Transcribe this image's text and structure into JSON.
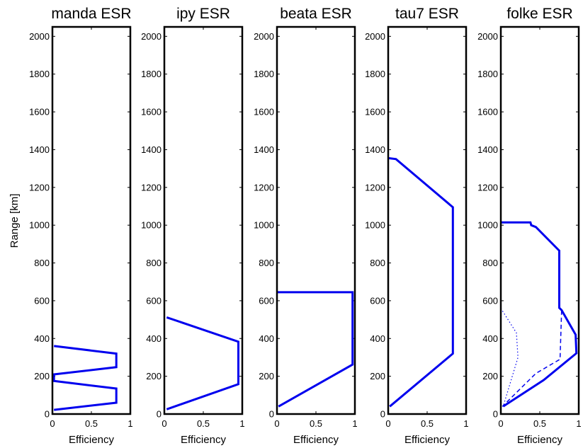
{
  "colors": {
    "series": "#0000ee",
    "axis": "#000000"
  },
  "ylabel": "Range [km]",
  "chart_data": [
    {
      "type": "line",
      "title": "manda ESR",
      "xlabel": "Efficiency",
      "xlim": [
        0,
        1
      ],
      "ylim": [
        0,
        2050
      ],
      "xticks": [
        "0",
        "0.5",
        "1"
      ],
      "yticks": [
        "0",
        "200",
        "400",
        "600",
        "800",
        "1000",
        "1200",
        "1400",
        "1600",
        "1800",
        "2000"
      ],
      "series": [
        {
          "style": "solid",
          "x": [
            0.02,
            0.82,
            0.82,
            0.02,
            0.02,
            0.82,
            0.82,
            0.02
          ],
          "y": [
            360,
            320,
            248,
            210,
            175,
            135,
            60,
            22
          ]
        }
      ]
    },
    {
      "type": "line",
      "title": "ipy ESR",
      "xlabel": "Efficiency",
      "xlim": [
        0,
        1
      ],
      "ylim": [
        0,
        2050
      ],
      "xticks": [
        "0",
        "0.5",
        "1"
      ],
      "yticks": [
        "0",
        "200",
        "400",
        "600",
        "800",
        "1000",
        "1200",
        "1400",
        "1600",
        "1800",
        "2000"
      ],
      "series": [
        {
          "style": "solid",
          "x": [
            0.03,
            0.95,
            0.95,
            0.03
          ],
          "y": [
            512,
            383,
            158,
            25
          ]
        }
      ]
    },
    {
      "type": "line",
      "title": "beata ESR",
      "xlabel": "Efficiency",
      "xlim": [
        0,
        1
      ],
      "ylim": [
        0,
        2050
      ],
      "xticks": [
        "0",
        "0.5",
        "1"
      ],
      "yticks": [
        "0",
        "200",
        "400",
        "600",
        "800",
        "1000",
        "1200",
        "1400",
        "1600",
        "1800",
        "2000"
      ],
      "series": [
        {
          "style": "solid",
          "x": [
            0,
            0.97,
            0.97,
            0.02
          ],
          "y": [
            645,
            645,
            262,
            40
          ]
        }
      ]
    },
    {
      "type": "line",
      "title": "tau7 ESR",
      "xlabel": "Efficiency",
      "xlim": [
        0,
        1
      ],
      "ylim": [
        0,
        2050
      ],
      "xticks": [
        "0",
        "0.5",
        "1"
      ],
      "yticks": [
        "0",
        "200",
        "400",
        "600",
        "800",
        "1000",
        "1200",
        "1400",
        "1600",
        "1800",
        "2000"
      ],
      "series": [
        {
          "style": "solid",
          "x": [
            0,
            0.1,
            0.83,
            0.83,
            0.02
          ],
          "y": [
            1355,
            1350,
            1095,
            320,
            40
          ]
        }
      ]
    },
    {
      "type": "line",
      "title": "folke ESR",
      "xlabel": "Efficiency",
      "xlim": [
        0,
        1
      ],
      "ylim": [
        0,
        2050
      ],
      "xticks": [
        "0",
        "0.5",
        "1"
      ],
      "yticks": [
        "0",
        "200",
        "400",
        "600",
        "800",
        "1000",
        "1200",
        "1400",
        "1600",
        "1800",
        "2000"
      ],
      "series": [
        {
          "style": "solid",
          "x": [
            0,
            0.38,
            0.39,
            0.45,
            0.75,
            0.75,
            0.78,
            0.96,
            0.97,
            0.55,
            0.03
          ],
          "y": [
            1015,
            1015,
            1000,
            990,
            865,
            562,
            550,
            420,
            322,
            180,
            40
          ]
        },
        {
          "style": "dashed",
          "x": [
            0.78,
            0.76,
            0.45,
            0.02
          ],
          "y": [
            548,
            290,
            215,
            40
          ]
        },
        {
          "style": "dotted",
          "x": [
            0.0,
            0.2,
            0.22,
            0.03
          ],
          "y": [
            560,
            430,
            300,
            40
          ]
        }
      ]
    }
  ]
}
